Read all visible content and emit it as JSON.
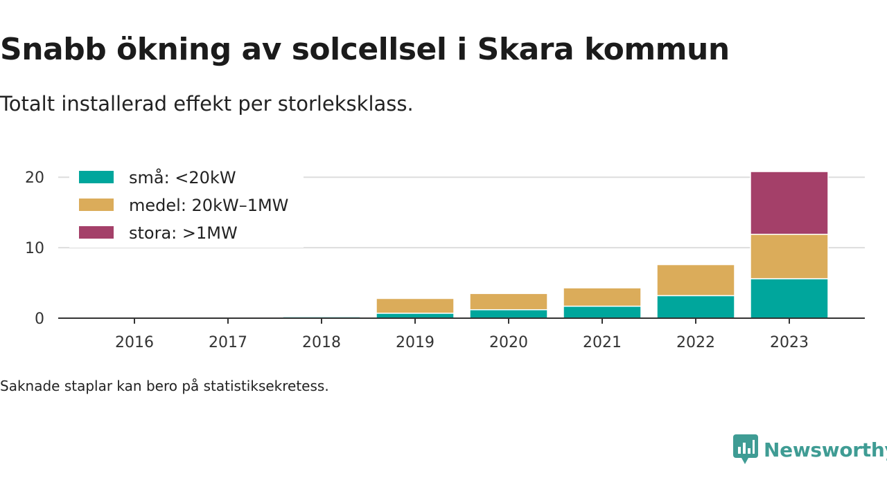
{
  "title": "Snabb ökning av solcellsel i Skara kommun",
  "subtitle": "Totalt installerad effekt per storleksklass.",
  "note": "Saknade staplar kan bero på statistiksekretess.",
  "brand": {
    "name": "Newsworthy",
    "icon": "newsworthy-logo-icon",
    "color": "#3f9c94"
  },
  "chart_data": {
    "type": "bar",
    "stacked": true,
    "categories": [
      "2016",
      "2017",
      "2018",
      "2019",
      "2020",
      "2021",
      "2022",
      "2023"
    ],
    "series": [
      {
        "name": "små: <20kW",
        "color": "#00a69c",
        "values": [
          0,
          0,
          0.2,
          0.7,
          1.2,
          1.7,
          3.2,
          5.6
        ]
      },
      {
        "name": "medel: 20kW–1MW",
        "color": "#dbac5a",
        "values": [
          0,
          0,
          0,
          2.1,
          2.3,
          2.6,
          4.4,
          6.3
        ]
      },
      {
        "name": "stora: >1MW",
        "color": "#a44069",
        "values": [
          0,
          0,
          0,
          0,
          0,
          0,
          0,
          8.9
        ]
      }
    ],
    "yticks": [
      0,
      10,
      20
    ],
    "ylim": [
      0,
      21
    ],
    "grid": true,
    "legend_position": "top-left"
  }
}
